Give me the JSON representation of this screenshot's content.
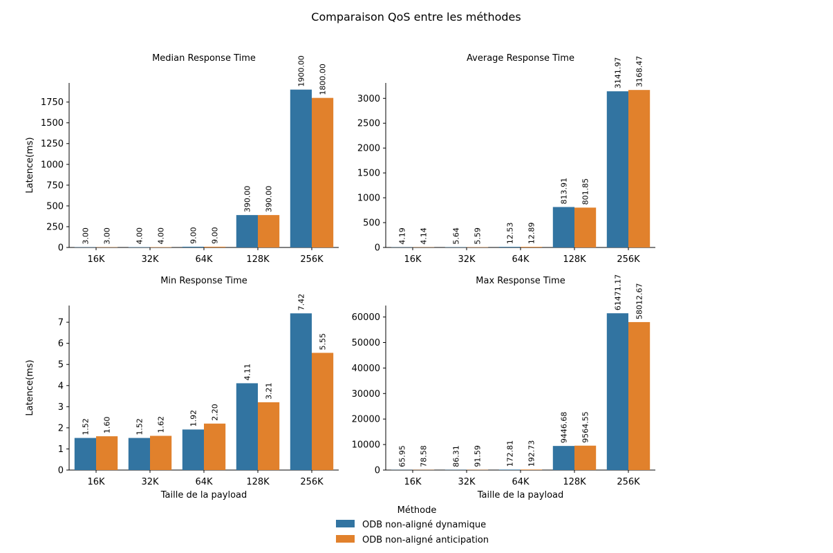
{
  "figure": {
    "title": "Comparaison QoS entre les méthodes",
    "legend": {
      "title": "Méthode",
      "placement": "bottom-center",
      "items": [
        "ODB non-aligné dynamique",
        "ODB non-aligné anticipation"
      ]
    },
    "colors": [
      "#3274a1",
      "#e1812c"
    ]
  },
  "chart_data": [
    {
      "type": "bar",
      "title": "Median Response Time",
      "ylabel": "Latence(ms)",
      "xlabel": "",
      "categories": [
        "16K",
        "32K",
        "64K",
        "128K",
        "256K"
      ],
      "ylim": [
        0,
        1980
      ],
      "yticks": [
        0,
        250,
        500,
        750,
        1000,
        1250,
        1500,
        1750
      ],
      "grid": false,
      "series": [
        {
          "name": "ODB non-aligné dynamique",
          "values": [
            3.0,
            4.0,
            9.0,
            390.0,
            1900.0
          ],
          "labels": [
            "3.00",
            "4.00",
            "9.00",
            "390.00",
            "1900.00"
          ]
        },
        {
          "name": "ODB non-aligné anticipation",
          "values": [
            3.0,
            4.0,
            9.0,
            390.0,
            1800.0
          ],
          "labels": [
            "3.00",
            "4.00",
            "9.00",
            "390.00",
            "1800.00"
          ]
        }
      ]
    },
    {
      "type": "bar",
      "title": "Average Response Time",
      "ylabel": "",
      "xlabel": "",
      "categories": [
        "16K",
        "32K",
        "64K",
        "128K",
        "256K"
      ],
      "ylim": [
        0,
        3310
      ],
      "yticks": [
        0,
        500,
        1000,
        1500,
        2000,
        2500,
        3000
      ],
      "grid": false,
      "series": [
        {
          "name": "ODB non-aligné dynamique",
          "values": [
            4.19,
            5.64,
            12.53,
            813.91,
            3141.97
          ],
          "labels": [
            "4.19",
            "5.64",
            "12.53",
            "813.91",
            "3141.97"
          ]
        },
        {
          "name": "ODB non-aligné anticipation",
          "values": [
            4.14,
            5.59,
            12.89,
            801.85,
            3168.47
          ],
          "labels": [
            "4.14",
            "5.59",
            "12.89",
            "801.85",
            "3168.47"
          ]
        }
      ]
    },
    {
      "type": "bar",
      "title": "Min Response Time",
      "ylabel": "Latence(ms)",
      "xlabel": "Taille de la payload",
      "categories": [
        "16K",
        "32K",
        "64K",
        "128K",
        "256K"
      ],
      "ylim": [
        0,
        7.79
      ],
      "yticks": [
        0,
        1,
        2,
        3,
        4,
        5,
        6,
        7
      ],
      "grid": false,
      "series": [
        {
          "name": "ODB non-aligné dynamique",
          "values": [
            1.52,
            1.52,
            1.92,
            4.11,
            7.42
          ],
          "labels": [
            "1.52",
            "1.52",
            "1.92",
            "4.11",
            "7.42"
          ]
        },
        {
          "name": "ODB non-aligné anticipation",
          "values": [
            1.6,
            1.62,
            2.2,
            3.21,
            5.55
          ],
          "labels": [
            "1.60",
            "1.62",
            "2.20",
            "3.21",
            "5.55"
          ]
        }
      ]
    },
    {
      "type": "bar",
      "title": "Max Response Time",
      "ylabel": "",
      "xlabel": "Taille de la payload",
      "categories": [
        "16K",
        "32K",
        "64K",
        "128K",
        "256K"
      ],
      "ylim": [
        0,
        64500
      ],
      "yticks": [
        0,
        10000,
        20000,
        30000,
        40000,
        50000,
        60000
      ],
      "grid": false,
      "series": [
        {
          "name": "ODB non-aligné dynamique",
          "values": [
            65.95,
            86.31,
            172.81,
            9446.68,
            61471.17
          ],
          "labels": [
            "65.95",
            "86.31",
            "172.81",
            "9446.68",
            "61471.17"
          ]
        },
        {
          "name": "ODB non-aligné anticipation",
          "values": [
            78.58,
            91.59,
            192.73,
            9564.55,
            58012.67
          ],
          "labels": [
            "78.58",
            "91.59",
            "192.73",
            "9564.55",
            "58012.67"
          ]
        }
      ]
    }
  ]
}
